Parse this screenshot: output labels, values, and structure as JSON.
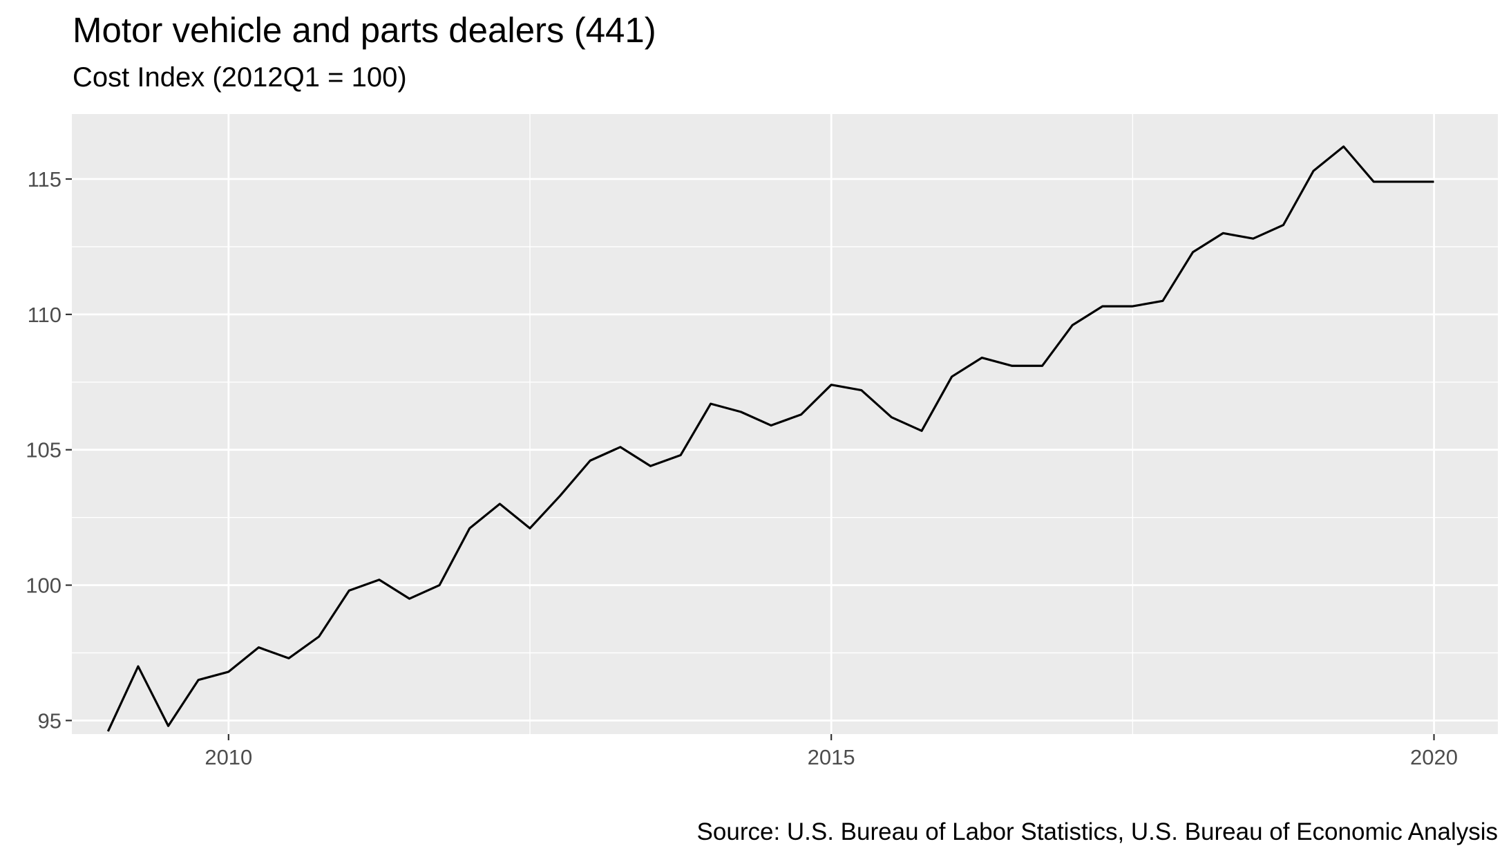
{
  "chart_data": {
    "type": "line",
    "title": "Motor vehicle and parts dealers (441)",
    "subtitle": "Cost Index (2012Q1 = 100)",
    "caption": "Source: U.S. Bureau of Labor Statistics, U.S. Bureau of Economic Analysis",
    "xlabel": "",
    "ylabel": "",
    "xlim": [
      2008.7,
      2020.53
    ],
    "ylim": [
      94.5,
      117.4
    ],
    "x_ticks": [
      2010,
      2015,
      2020
    ],
    "x_tick_labels": [
      "2010",
      "2015",
      "2020"
    ],
    "y_ticks": [
      95,
      100,
      105,
      110,
      115
    ],
    "y_tick_labels": [
      "95",
      "100",
      "105",
      "110",
      "115"
    ],
    "grid": true,
    "line_color": "#000000",
    "panel_background": "#ebebeb",
    "grid_color": "#ffffff",
    "x": [
      2009.0,
      2009.25,
      2009.5,
      2009.75,
      2010.0,
      2010.25,
      2010.5,
      2010.75,
      2011.0,
      2011.25,
      2011.5,
      2011.75,
      2012.0,
      2012.25,
      2012.5,
      2012.75,
      2013.0,
      2013.25,
      2013.5,
      2013.75,
      2014.0,
      2014.25,
      2014.5,
      2014.75,
      2015.0,
      2015.25,
      2015.5,
      2015.75,
      2016.0,
      2016.25,
      2016.5,
      2016.75,
      2017.0,
      2017.25,
      2017.5,
      2017.75,
      2018.0,
      2018.25,
      2018.5,
      2018.75,
      2019.0,
      2019.25,
      2019.5,
      2019.75,
      2020.0
    ],
    "y": [
      94.6,
      97.0,
      94.8,
      96.5,
      96.8,
      97.7,
      97.3,
      98.1,
      99.8,
      100.2,
      99.5,
      100.0,
      102.1,
      103.0,
      102.1,
      103.3,
      104.6,
      105.1,
      104.4,
      104.8,
      106.7,
      106.4,
      105.9,
      106.3,
      107.4,
      107.2,
      106.2,
      105.7,
      107.7,
      108.4,
      108.1,
      108.1,
      109.6,
      110.3,
      110.3,
      110.5,
      112.3,
      113.0,
      112.8,
      113.3,
      115.3,
      116.2,
      114.9,
      114.9,
      114.9
    ]
  }
}
